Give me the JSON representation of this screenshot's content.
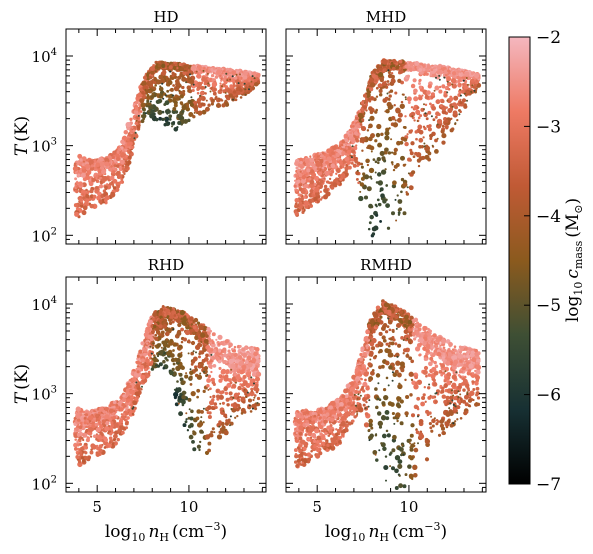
{
  "chart_data": {
    "type": "scatter",
    "panels": [
      {
        "title": "HD",
        "xlim": [
          3.3,
          14.2
        ],
        "ylim": [
          80,
          20000
        ],
        "yscale": "log",
        "xticks": [
          5,
          10
        ],
        "yticks": [
          {
            "value": 100,
            "label": "10",
            "sup": "2"
          },
          {
            "value": 1000,
            "label": "10",
            "sup": "3"
          },
          {
            "value": 10000,
            "label": "10",
            "sup": "4"
          }
        ],
        "ridge": [
          [
            3.8,
            400
          ],
          [
            4.3,
            560
          ],
          [
            5.0,
            600
          ],
          [
            5.8,
            620
          ],
          [
            6.4,
            800
          ],
          [
            6.9,
            1500
          ],
          [
            7.3,
            3000
          ],
          [
            7.8,
            5500
          ],
          [
            8.3,
            7500
          ],
          [
            9,
            7300
          ],
          [
            10,
            7000
          ],
          [
            11,
            6800
          ],
          [
            12,
            6500
          ],
          [
            13,
            6200
          ],
          [
            13.8,
            5900
          ]
        ],
        "band_upper": [
          [
            3.8,
            800
          ],
          [
            4.5,
            700
          ],
          [
            5.5,
            720
          ],
          [
            6.3,
            1000
          ],
          [
            6.8,
            2000
          ],
          [
            7.2,
            3800
          ],
          [
            7.7,
            6500
          ],
          [
            8.2,
            8500
          ],
          [
            9,
            8300
          ],
          [
            10,
            7900
          ],
          [
            11,
            7500
          ],
          [
            12,
            7100
          ],
          [
            13,
            6700
          ],
          [
            13.8,
            6200
          ]
        ],
        "band_lower": [
          [
            3.8,
            150
          ],
          [
            4.5,
            190
          ],
          [
            5.5,
            230
          ],
          [
            6.3,
            350
          ],
          [
            6.8,
            700
          ],
          [
            7.2,
            1400
          ],
          [
            7.7,
            2400
          ],
          [
            8.2,
            1800
          ],
          [
            9,
            1400
          ],
          [
            10,
            1800
          ],
          [
            11,
            2500
          ],
          [
            12,
            2800
          ],
          [
            13,
            3500
          ],
          [
            13.8,
            5000
          ]
        ],
        "dark_spread": [
          7.4,
          10.2
        ],
        "dark_tmin": 380
      },
      {
        "title": "MHD",
        "xlim": [
          3.3,
          14.2
        ],
        "ylim": [
          80,
          20000
        ],
        "yscale": "log",
        "xticks": [
          5,
          10
        ],
        "ridge": [
          [
            3.8,
            350
          ],
          [
            4.5,
            520
          ],
          [
            5.5,
            620
          ],
          [
            6.4,
            800
          ],
          [
            7.0,
            1200
          ],
          [
            7.5,
            2200
          ],
          [
            8.0,
            4500
          ],
          [
            8.6,
            6800
          ],
          [
            9.5,
            7200
          ],
          [
            10.5,
            7000
          ],
          [
            11.5,
            6700
          ],
          [
            12.5,
            6400
          ],
          [
            13.8,
            5800
          ]
        ],
        "band_upper": [
          [
            3.8,
            700
          ],
          [
            4.5,
            750
          ],
          [
            5.5,
            850
          ],
          [
            6.4,
            1150
          ],
          [
            7.0,
            1800
          ],
          [
            7.5,
            3200
          ],
          [
            8.0,
            6500
          ],
          [
            8.6,
            9000
          ],
          [
            9.5,
            8800
          ],
          [
            10.5,
            8300
          ],
          [
            11.5,
            7800
          ],
          [
            12.5,
            7200
          ],
          [
            13.8,
            6200
          ]
        ],
        "band_lower": [
          [
            3.8,
            150
          ],
          [
            4.5,
            200
          ],
          [
            5.5,
            260
          ],
          [
            6.4,
            400
          ],
          [
            7.0,
            650
          ],
          [
            7.5,
            180
          ],
          [
            8.0,
            85
          ],
          [
            8.6,
            85
          ],
          [
            9.5,
            120
          ],
          [
            10.5,
            500
          ],
          [
            11.5,
            800
          ],
          [
            12.5,
            1600
          ],
          [
            13.8,
            4500
          ]
        ],
        "dark_spread": [
          7.3,
          9.8
        ],
        "dark_tmin": 85
      },
      {
        "title": "RHD",
        "xlim": [
          3.3,
          14.2
        ],
        "ylim": [
          80,
          20000
        ],
        "yscale": "log",
        "xticks": [
          5,
          10
        ],
        "ridge": [
          [
            3.8,
            350
          ],
          [
            4.5,
            500
          ],
          [
            5.5,
            550
          ],
          [
            6.4,
            700
          ],
          [
            7.0,
            1200
          ],
          [
            7.5,
            2500
          ],
          [
            8.0,
            5000
          ],
          [
            8.6,
            7200
          ],
          [
            9.5,
            7000
          ],
          [
            10.5,
            4000
          ],
          [
            11.5,
            2500
          ],
          [
            12.5,
            2000
          ],
          [
            13.8,
            1800
          ]
        ],
        "band_upper": [
          [
            3.8,
            700
          ],
          [
            4.5,
            650
          ],
          [
            5.5,
            700
          ],
          [
            6.4,
            950
          ],
          [
            7.0,
            1800
          ],
          [
            7.5,
            4000
          ],
          [
            8.0,
            7500
          ],
          [
            8.6,
            9500
          ],
          [
            9.5,
            8500
          ],
          [
            10.5,
            6500
          ],
          [
            11.5,
            4500
          ],
          [
            12.5,
            3500
          ],
          [
            13.8,
            3200
          ]
        ],
        "band_lower": [
          [
            3.8,
            150
          ],
          [
            4.5,
            180
          ],
          [
            5.5,
            220
          ],
          [
            6.4,
            320
          ],
          [
            7.0,
            600
          ],
          [
            7.5,
            1200
          ],
          [
            8.0,
            1800
          ],
          [
            8.6,
            2000
          ],
          [
            9.5,
            600
          ],
          [
            10.5,
            180
          ],
          [
            11.5,
            250
          ],
          [
            12.5,
            500
          ],
          [
            13.8,
            700
          ]
        ],
        "dark_spread": [
          8.0,
          11.0
        ],
        "dark_tmin": 300
      },
      {
        "title": "RMHD",
        "xlim": [
          3.3,
          14.2
        ],
        "ylim": [
          80,
          20000
        ],
        "yscale": "log",
        "xticks": [
          5,
          10
        ],
        "ridge": [
          [
            3.8,
            350
          ],
          [
            4.5,
            500
          ],
          [
            5.5,
            550
          ],
          [
            6.4,
            700
          ],
          [
            7.0,
            1100
          ],
          [
            7.5,
            2200
          ],
          [
            8.0,
            4500
          ],
          [
            8.6,
            8000
          ],
          [
            9.5,
            6500
          ],
          [
            10.5,
            4000
          ],
          [
            11.5,
            2800
          ],
          [
            12.5,
            2200
          ],
          [
            13.8,
            1900
          ]
        ],
        "band_upper": [
          [
            3.8,
            700
          ],
          [
            4.5,
            650
          ],
          [
            5.5,
            700
          ],
          [
            6.4,
            950
          ],
          [
            7.0,
            1600
          ],
          [
            7.5,
            3500
          ],
          [
            8.0,
            7500
          ],
          [
            8.6,
            11000
          ],
          [
            9.5,
            9000
          ],
          [
            10.5,
            6500
          ],
          [
            11.5,
            4500
          ],
          [
            12.5,
            3500
          ],
          [
            13.8,
            3000
          ]
        ],
        "band_lower": [
          [
            3.8,
            140
          ],
          [
            4.5,
            170
          ],
          [
            5.5,
            210
          ],
          [
            6.4,
            300
          ],
          [
            7.0,
            500
          ],
          [
            7.5,
            700
          ],
          [
            8.0,
            200
          ],
          [
            8.6,
            85
          ],
          [
            9.5,
            85
          ],
          [
            10.5,
            110
          ],
          [
            11.5,
            300
          ],
          [
            12.5,
            450
          ],
          [
            13.8,
            700
          ]
        ],
        "dark_spread": [
          7.8,
          10.2
        ],
        "dark_tmin": 85
      }
    ],
    "xlabel": "log10 nH (cm−3)",
    "ylabel": "T (K)",
    "colorbar": {
      "label": "log10 cmass (M⊙)",
      "range": [
        -7,
        -2
      ],
      "ticks": [
        -7,
        -6,
        -5,
        -4,
        -3,
        -2
      ],
      "stops": [
        "#000000",
        "#173033",
        "#3e4f34",
        "#8b5a1e",
        "#c05a35",
        "#ee7a64",
        "#f4b7bf"
      ]
    }
  },
  "labels": {
    "xlabel_main": "log",
    "xlabel_sub": "10",
    "xlabel_var": "n",
    "xlabel_var_sub": "H",
    "xlabel_unit_open": "(cm",
    "xlabel_unit_sup": "−3",
    "xlabel_unit_close": ")",
    "ylabel_var": "T",
    "ylabel_unit": "(K)",
    "cb_main": "log",
    "cb_sub": "10",
    "cb_var": "c",
    "cb_var_sub": "mass",
    "cb_unit_open": "(M",
    "cb_unit_sym": "⊙",
    "cb_unit_close": ")"
  }
}
